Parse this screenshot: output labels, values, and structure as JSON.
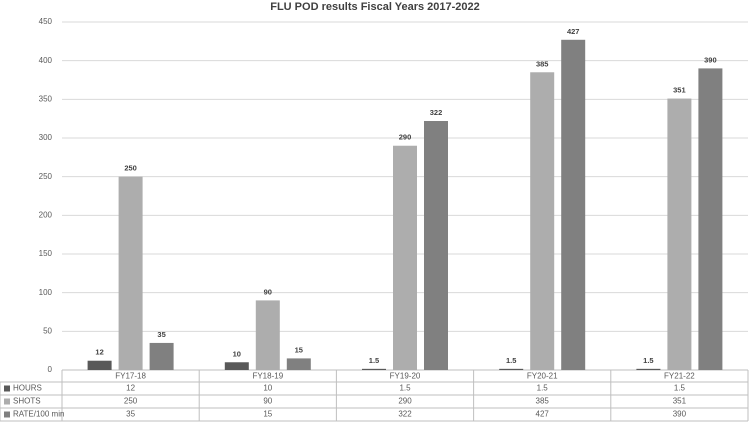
{
  "chart_data": {
    "type": "bar",
    "title": "FLU POD results Fiscal Years 2017-2022",
    "categories": [
      "FY17-18",
      "FY18-19",
      "FY19-20",
      "FY20-21",
      "FY21-22"
    ],
    "series": [
      {
        "name": "HOURS",
        "color": "#595959",
        "values": [
          12,
          10,
          1.5,
          1.5,
          1.5
        ]
      },
      {
        "name": "SHOTS",
        "color": "#adadad",
        "values": [
          250,
          90,
          290,
          385,
          351
        ]
      },
      {
        "name": "RATE/100 min",
        "color": "#808080",
        "values": [
          35,
          15,
          322,
          427,
          390
        ]
      }
    ],
    "ylim": [
      0,
      450
    ],
    "yticks": [
      0,
      50,
      100,
      150,
      200,
      250,
      300,
      350,
      400,
      450
    ],
    "grid": true
  }
}
